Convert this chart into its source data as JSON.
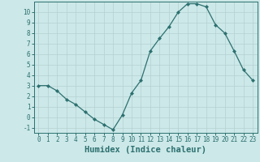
{
  "x": [
    0,
    1,
    2,
    3,
    4,
    5,
    6,
    7,
    8,
    9,
    10,
    11,
    12,
    13,
    14,
    15,
    16,
    17,
    18,
    19,
    20,
    21,
    22,
    23
  ],
  "y": [
    3.0,
    3.0,
    2.5,
    1.7,
    1.2,
    0.5,
    -0.2,
    -0.7,
    -1.2,
    0.2,
    2.3,
    3.5,
    6.3,
    7.5,
    8.6,
    10.0,
    10.8,
    10.8,
    10.5,
    8.8,
    8.0,
    6.3,
    4.5,
    3.5
  ],
  "line_color": "#2d7070",
  "marker": "D",
  "marker_size": 2.0,
  "xlabel": "Humidex (Indice chaleur)",
  "xlim": [
    -0.5,
    23.5
  ],
  "ylim": [
    -1.5,
    11.0
  ],
  "yticks": [
    -1,
    0,
    1,
    2,
    3,
    4,
    5,
    6,
    7,
    8,
    9,
    10
  ],
  "xticks": [
    0,
    1,
    2,
    3,
    4,
    5,
    6,
    7,
    8,
    9,
    10,
    11,
    12,
    13,
    14,
    15,
    16,
    17,
    18,
    19,
    20,
    21,
    22,
    23
  ],
  "bg_color": "#cce8e8",
  "grid_color": "#b5d0d0",
  "tick_label_fontsize": 5.5,
  "xlabel_fontsize": 7.5
}
